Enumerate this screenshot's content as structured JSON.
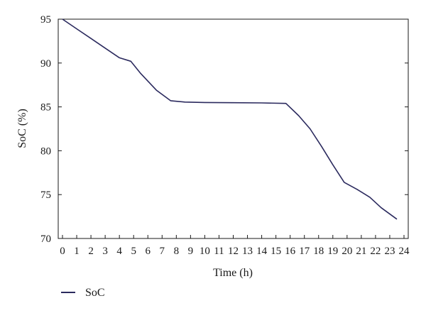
{
  "chart_data": {
    "type": "line",
    "title": "",
    "xlabel": "Time (h)",
    "ylabel": "SoC (%)",
    "xlim": [
      0,
      24
    ],
    "ylim": [
      70,
      95
    ],
    "x_ticks": [
      0,
      1,
      2,
      3,
      4,
      5,
      6,
      7,
      8,
      9,
      10,
      11,
      12,
      13,
      14,
      15,
      16,
      17,
      18,
      19,
      20,
      21,
      22,
      23,
      24
    ],
    "y_ticks": [
      70,
      75,
      80,
      85,
      90,
      95
    ],
    "grid": false,
    "legend_position": "bottom-left",
    "series": [
      {
        "name": "SoC",
        "color": "#2b2a5e",
        "x": [
          0,
          1,
          2,
          3,
          4,
          4.8,
          5.5,
          6.6,
          7.6,
          8.6,
          10,
          12,
          14,
          15.7,
          16.6,
          17.4,
          18.2,
          19,
          19.8,
          20.7,
          21.6,
          22.4,
          23.5
        ],
        "values": [
          95,
          93.9,
          92.8,
          91.7,
          90.6,
          90.2,
          88.8,
          86.9,
          85.7,
          85.55,
          85.5,
          85.48,
          85.45,
          85.4,
          84.0,
          82.5,
          80.5,
          78.4,
          76.4,
          75.6,
          74.7,
          73.5,
          72.2
        ]
      }
    ]
  }
}
